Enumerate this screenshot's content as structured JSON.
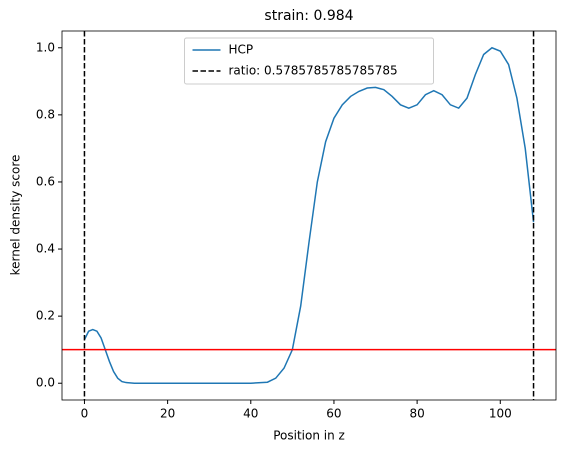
{
  "chart_data": {
    "type": "line",
    "title": "strain: 0.984",
    "xlabel": "Position in z",
    "ylabel": "kernel density score",
    "x": [
      0,
      1,
      2,
      3,
      4,
      5,
      6,
      7,
      8,
      9,
      10,
      12,
      20,
      30,
      40,
      44,
      46,
      48,
      50,
      52,
      54,
      56,
      58,
      60,
      62,
      64,
      66,
      68,
      70,
      72,
      74,
      76,
      78,
      80,
      82,
      84,
      86,
      88,
      90,
      92,
      94,
      96,
      98,
      100,
      102,
      104,
      106,
      108
    ],
    "series": [
      {
        "name": "HCP",
        "color": "#1f77b4",
        "values": [
          0.13,
          0.155,
          0.16,
          0.155,
          0.135,
          0.1,
          0.065,
          0.035,
          0.015,
          0.005,
          0.002,
          0,
          0,
          0,
          0,
          0.003,
          0.015,
          0.045,
          0.1,
          0.23,
          0.42,
          0.6,
          0.72,
          0.79,
          0.83,
          0.855,
          0.87,
          0.88,
          0.882,
          0.875,
          0.855,
          0.83,
          0.82,
          0.83,
          0.86,
          0.872,
          0.86,
          0.83,
          0.82,
          0.85,
          0.92,
          0.98,
          1.0,
          0.99,
          0.95,
          0.85,
          0.7,
          0.48
        ]
      }
    ],
    "vlines": {
      "name": "ratio: 0.5785785785785785",
      "color": "#000000",
      "x": [
        0,
        108
      ]
    },
    "hline": {
      "color": "#ff0000",
      "y": 0.1
    },
    "xlim": [
      -5.4,
      113.4
    ],
    "ylim": [
      -0.05,
      1.05
    ],
    "xticks": [
      0,
      20,
      40,
      60,
      80,
      100
    ],
    "yticks": [
      {
        "value": 0,
        "label": "0.0"
      },
      0.2,
      0.4,
      0.6,
      0.8,
      {
        "value": 1,
        "label": "1.0"
      }
    ],
    "legend": "upper center"
  }
}
